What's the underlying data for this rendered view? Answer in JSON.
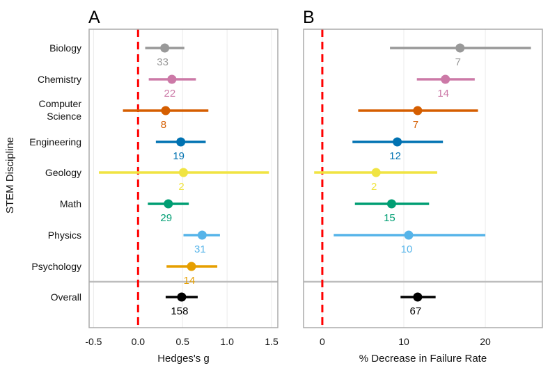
{
  "chart_data": {
    "type": "forest",
    "categories": [
      "Biology",
      "Chemistry",
      "Computer Science",
      "Engineering",
      "Geology",
      "Math",
      "Physics",
      "Psychology",
      "Overall"
    ],
    "category_lines": [
      [
        "Biology"
      ],
      [
        "Chemistry"
      ],
      [
        "Computer",
        "Science"
      ],
      [
        "Engineering"
      ],
      [
        "Geology"
      ],
      [
        "Math"
      ],
      [
        "Physics"
      ],
      [
        "Psychology"
      ],
      [
        "Overall"
      ]
    ],
    "colors": [
      "#999999",
      "#CC79A7",
      "#D55E00",
      "#0072B2",
      "#F0E442",
      "#009E73",
      "#56B4E9",
      "#E69F00",
      "#000000"
    ],
    "reference_line": {
      "value": 0,
      "color": "#FF0000",
      "style": "dashed"
    },
    "ylabel": "STEM Discipline",
    "separator_before": "Overall",
    "panels": [
      {
        "label": "A",
        "xlabel": "Hedges's g",
        "xlim": [
          -0.55,
          1.57
        ],
        "xticks": [
          -0.5,
          0.0,
          0.5,
          1.0,
          1.5
        ],
        "xtick_labels": [
          "-0.5",
          "0.0",
          "0.5",
          "1.0",
          "1.5"
        ],
        "grid": true,
        "series": [
          {
            "category": "Biology",
            "estimate": 0.3,
            "ci_low": 0.08,
            "ci_high": 0.52,
            "n": "33"
          },
          {
            "category": "Chemistry",
            "estimate": 0.38,
            "ci_low": 0.12,
            "ci_high": 0.65,
            "n": "22"
          },
          {
            "category": "Computer Science",
            "estimate": 0.31,
            "ci_low": -0.17,
            "ci_high": 0.79,
            "n": "8"
          },
          {
            "category": "Engineering",
            "estimate": 0.48,
            "ci_low": 0.2,
            "ci_high": 0.76,
            "n": "19"
          },
          {
            "category": "Geology",
            "estimate": 0.51,
            "ci_low": -0.44,
            "ci_high": 1.47,
            "n": "2"
          },
          {
            "category": "Math",
            "estimate": 0.34,
            "ci_low": 0.11,
            "ci_high": 0.57,
            "n": "29"
          },
          {
            "category": "Physics",
            "estimate": 0.72,
            "ci_low": 0.51,
            "ci_high": 0.92,
            "n": "31"
          },
          {
            "category": "Psychology",
            "estimate": 0.6,
            "ci_low": 0.32,
            "ci_high": 0.89,
            "n": "14"
          },
          {
            "category": "Overall",
            "estimate": 0.49,
            "ci_low": 0.31,
            "ci_high": 0.67,
            "n": "158"
          }
        ]
      },
      {
        "label": "B",
        "xlabel": "% Decrease in Failure Rate",
        "xlim": [
          -2.3,
          27.0
        ],
        "xticks": [
          0,
          10,
          20
        ],
        "xtick_labels": [
          "0",
          "10",
          "20"
        ],
        "grid": true,
        "series": [
          {
            "category": "Biology",
            "estimate": 16.9,
            "ci_low": 8.3,
            "ci_high": 25.6,
            "n": "7"
          },
          {
            "category": "Chemistry",
            "estimate": 15.1,
            "ci_low": 11.6,
            "ci_high": 18.7,
            "n": "14"
          },
          {
            "category": "Computer Science",
            "estimate": 11.7,
            "ci_low": 4.4,
            "ci_high": 19.1,
            "n": "7"
          },
          {
            "category": "Engineering",
            "estimate": 9.2,
            "ci_low": 3.7,
            "ci_high": 14.8,
            "n": "12"
          },
          {
            "category": "Geology",
            "estimate": 6.6,
            "ci_low": -1.0,
            "ci_high": 14.1,
            "n": "2"
          },
          {
            "category": "Math",
            "estimate": 8.5,
            "ci_low": 4.0,
            "ci_high": 13.1,
            "n": "15"
          },
          {
            "category": "Physics",
            "estimate": 10.6,
            "ci_low": 1.4,
            "ci_high": 20.0,
            "n": "10"
          },
          {
            "category": "Psychology",
            "estimate": null,
            "ci_low": null,
            "ci_high": null,
            "n": null
          },
          {
            "category": "Overall",
            "estimate": 11.7,
            "ci_low": 9.6,
            "ci_high": 13.9,
            "n": "67"
          }
        ]
      }
    ]
  }
}
